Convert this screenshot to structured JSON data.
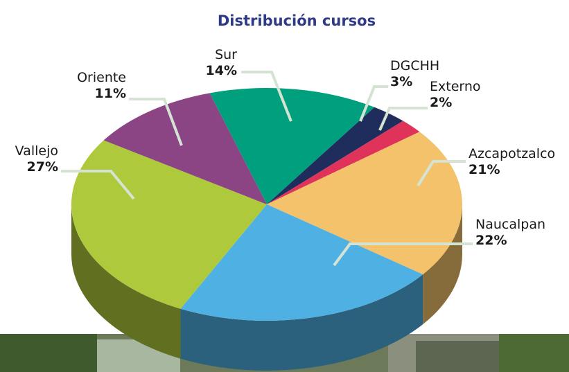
{
  "chart_data": {
    "type": "pie",
    "title": "Distribución cursos",
    "categories": [
      "Sur",
      "DGCHH",
      "Externo",
      "Azcapotzalco",
      "Naucalpan",
      "Vallejo",
      "Oriente"
    ],
    "values": [
      14,
      3,
      2,
      21,
      22,
      27,
      11
    ],
    "value_labels": [
      "14%",
      "3%",
      "2%",
      "21%",
      "22%",
      "27%",
      "11%"
    ],
    "colors": [
      "#00a07e",
      "#1f2d5c",
      "#e0335a",
      "#f3c26b",
      "#4fb0e3",
      "#aec93b",
      "#8b4584"
    ]
  }
}
